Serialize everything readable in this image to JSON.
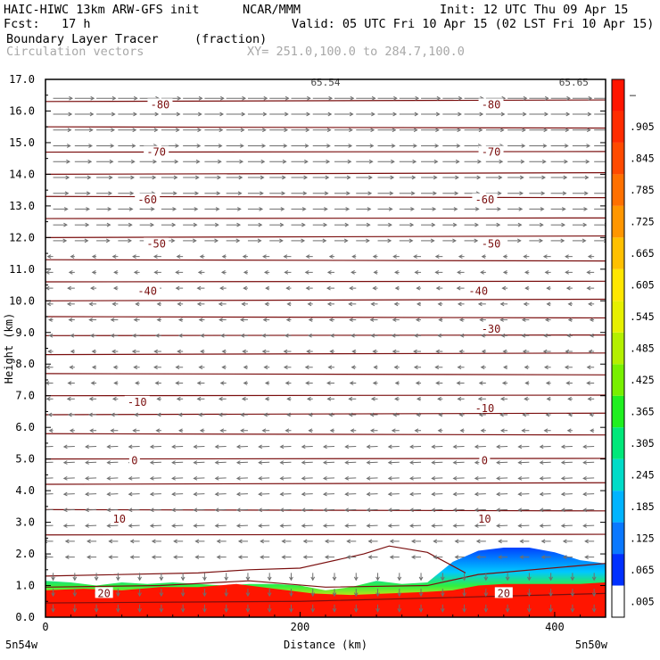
{
  "header": {
    "title_left": "HAIC-HIWC 13km ARW-GFS init",
    "org": "NCAR/MMM",
    "init": "Init: 12 UTC Thu 09 Apr 15",
    "fcst": "Fcst:   17 h",
    "valid": "Valid: 05 UTC Fri 10 Apr 15 (02 LST Fri 10 Apr 15)",
    "field": "Boundary Layer Tracer",
    "units": "(fraction)",
    "vectors": "Circulation vectors",
    "xy": "XY= 251.0,100.0 to 284.7,100.0"
  },
  "colors": {
    "contour": "#7a0e0e",
    "vector": "#6e6e6e",
    "tracer": "#ff1500"
  },
  "chart_data": {
    "type": "heatmap",
    "xlabel": "Distance (km)",
    "ylabel": "Height (km)",
    "xlim": [
      0,
      440
    ],
    "ylim": [
      0,
      17
    ],
    "x_ticks": [
      "0",
      "200",
      "400"
    ],
    "y_ticks": [
      "0.0",
      "1.0",
      "2.0",
      "3.0",
      "4.0",
      "5.0",
      "6.0",
      "7.0",
      "8.0",
      "9.0",
      "10.0",
      "11.0",
      "12.0",
      "13.0",
      "14.0",
      "15.0",
      "16.0",
      "17.0"
    ],
    "x_end_labels": {
      "left": "5n54w",
      "right": "5n50w"
    },
    "colorbar": {
      "labels": [
        ".005",
        ".065",
        ".125",
        ".185",
        ".245",
        ".305",
        ".365",
        ".425",
        ".485",
        ".545",
        ".605",
        ".665",
        ".725",
        ".785",
        ".845",
        ".905",
        "–"
      ],
      "colors": [
        "#ffffff",
        "#0030ff",
        "#0a78ff",
        "#00b4ff",
        "#00dcc8",
        "#00e87a",
        "#20f020",
        "#78f000",
        "#b4f000",
        "#e6f000",
        "#ffe600",
        "#ffc000",
        "#ff9600",
        "#ff7000",
        "#ff4a00",
        "#ff2c00",
        "#ff1500"
      ]
    },
    "contour_labels": [
      {
        "text": "-80",
        "x": 90,
        "y": 16.2
      },
      {
        "text": "-80",
        "x": 350,
        "y": 16.2
      },
      {
        "text": "-70",
        "x": 87,
        "y": 14.7
      },
      {
        "text": "-70",
        "x": 350,
        "y": 14.7
      },
      {
        "text": "-60",
        "x": 80,
        "y": 13.2
      },
      {
        "text": "-60",
        "x": 345,
        "y": 13.2
      },
      {
        "text": "-50",
        "x": 87,
        "y": 11.8
      },
      {
        "text": "-50",
        "x": 350,
        "y": 11.8
      },
      {
        "text": "-40",
        "x": 80,
        "y": 10.3
      },
      {
        "text": "-40",
        "x": 340,
        "y": 10.3
      },
      {
        "text": "-30",
        "x": 350,
        "y": 9.1
      },
      {
        "text": "-10",
        "x": 72,
        "y": 6.8
      },
      {
        "text": "-10",
        "x": 345,
        "y": 6.6
      },
      {
        "text": "0",
        "x": 70,
        "y": 4.95
      },
      {
        "text": "0",
        "x": 345,
        "y": 4.95
      },
      {
        "text": "10",
        "x": 58,
        "y": 3.1
      },
      {
        "text": "10",
        "x": 345,
        "y": 3.1
      },
      {
        "text": "20",
        "x": 46,
        "y": 0.75
      },
      {
        "text": "20",
        "x": 360,
        "y": 0.75
      }
    ],
    "top_labels": [
      {
        "text": "65.54",
        "x": 220
      },
      {
        "text": "65.65",
        "x": 415
      }
    ],
    "contour_levels_km": [
      16.3,
      15.5,
      14.7,
      14.0,
      13.3,
      12.6,
      12.0,
      11.3,
      10.6,
      10.0,
      9.5,
      8.9,
      8.3,
      7.7,
      7.0,
      6.4,
      5.8,
      5.0,
      4.2,
      3.4,
      2.6
    ],
    "tracer_top_profile": [
      [
        0,
        1.15
      ],
      [
        20,
        1.1
      ],
      [
        40,
        1.0
      ],
      [
        60,
        1.1
      ],
      [
        80,
        1.05
      ],
      [
        100,
        1.1
      ],
      [
        120,
        1.05
      ],
      [
        140,
        1.0
      ],
      [
        160,
        1.05
      ],
      [
        180,
        1.05
      ],
      [
        200,
        1.0
      ],
      [
        220,
        0.85
      ],
      [
        240,
        0.95
      ],
      [
        260,
        1.15
      ],
      [
        280,
        1.05
      ],
      [
        300,
        1.1
      ],
      [
        320,
        1.75
      ],
      [
        340,
        2.1
      ],
      [
        360,
        2.2
      ],
      [
        380,
        2.2
      ],
      [
        400,
        2.05
      ],
      [
        420,
        1.8
      ],
      [
        440,
        1.7
      ]
    ],
    "red_top_profile": [
      [
        0,
        0.85
      ],
      [
        30,
        0.9
      ],
      [
        60,
        0.85
      ],
      [
        90,
        0.95
      ],
      [
        120,
        0.95
      ],
      [
        150,
        1.05
      ],
      [
        180,
        0.9
      ],
      [
        210,
        0.75
      ],
      [
        240,
        0.7
      ],
      [
        270,
        0.75
      ],
      [
        300,
        0.8
      ],
      [
        320,
        0.85
      ],
      [
        340,
        1.0
      ],
      [
        360,
        1.05
      ],
      [
        390,
        1.05
      ],
      [
        420,
        1.05
      ],
      [
        440,
        1.1
      ]
    ]
  }
}
